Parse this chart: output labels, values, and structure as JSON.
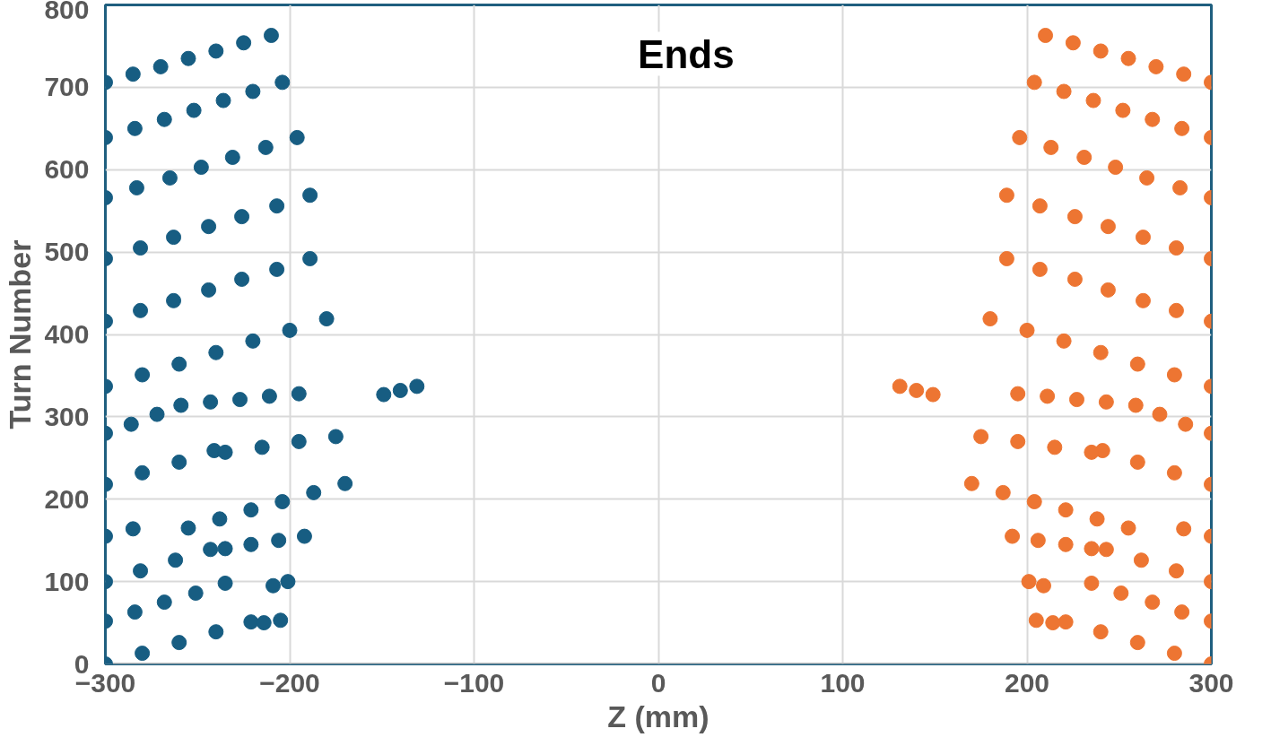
{
  "chart_data": {
    "type": "scatter",
    "title": "Ends",
    "xlabel": "Z (mm)",
    "ylabel": "Turn Number",
    "xlim": [
      -300,
      300
    ],
    "xticks": [
      -300,
      -200,
      -100,
      0,
      100,
      200,
      300
    ],
    "ylim": [
      0,
      800
    ],
    "yticks": [
      0,
      100,
      200,
      300,
      400,
      500,
      600,
      700,
      800
    ],
    "grid": true,
    "marker": "circle",
    "series": [
      {
        "color": "#175d82",
        "x": [
          -300,
          -280,
          -260,
          -240,
          -221,
          -214,
          -205,
          -300,
          -284,
          -268,
          -251,
          -235,
          -209,
          -201,
          -300,
          -281,
          -262,
          -243,
          -235,
          -221,
          -206,
          -192,
          -300,
          -285,
          -255,
          -238,
          -221,
          -204,
          -187,
          -170,
          -300,
          -280,
          -260,
          -241,
          -235,
          -215,
          -195,
          -175,
          -300,
          -286,
          -272,
          -259,
          -243,
          -227,
          -211,
          -195,
          -149,
          -140,
          -131,
          -300,
          -280,
          -260,
          -240,
          -220,
          -200,
          -180,
          -300,
          -281,
          -263,
          -244,
          -226,
          -207,
          -189,
          -300,
          -281,
          -263,
          -244,
          -226,
          -207,
          -189,
          -300,
          -283,
          -265,
          -248,
          -231,
          -213,
          -196,
          -300,
          -284,
          -268,
          -252,
          -236,
          -220,
          -204,
          -300,
          -285,
          -270,
          -255,
          -240,
          -225,
          -210
        ],
        "values": [
          0,
          13,
          26,
          39,
          51,
          50,
          53,
          52,
          63,
          75,
          86,
          98,
          95,
          100,
          100,
          113,
          126,
          139,
          140,
          145,
          150,
          155,
          155,
          164,
          165,
          176,
          187,
          197,
          208,
          219,
          218,
          232,
          245,
          259,
          257,
          263,
          270,
          276,
          280,
          291,
          303,
          314,
          318,
          321,
          325,
          328,
          327,
          332,
          337,
          337,
          351,
          364,
          378,
          392,
          405,
          419,
          416,
          429,
          441,
          454,
          467,
          479,
          492,
          492,
          505,
          518,
          531,
          543,
          556,
          569,
          566,
          578,
          590,
          603,
          615,
          627,
          639,
          639,
          650,
          661,
          672,
          684,
          695,
          706,
          706,
          716,
          725,
          735,
          744,
          754,
          763
        ]
      },
      {
        "color": "#ed7532",
        "x": [
          300,
          280,
          260,
          240,
          221,
          214,
          205,
          300,
          284,
          268,
          251,
          235,
          209,
          201,
          300,
          281,
          262,
          243,
          235,
          221,
          206,
          192,
          300,
          285,
          255,
          238,
          221,
          204,
          187,
          170,
          300,
          280,
          260,
          241,
          235,
          215,
          195,
          175,
          300,
          286,
          272,
          259,
          243,
          227,
          211,
          195,
          149,
          140,
          131,
          300,
          280,
          260,
          240,
          220,
          200,
          180,
          300,
          281,
          263,
          244,
          226,
          207,
          189,
          300,
          281,
          263,
          244,
          226,
          207,
          189,
          300,
          283,
          265,
          248,
          231,
          213,
          196,
          300,
          284,
          268,
          252,
          236,
          220,
          204,
          300,
          285,
          270,
          255,
          240,
          225,
          210
        ],
        "values": [
          0,
          13,
          26,
          39,
          51,
          50,
          53,
          52,
          63,
          75,
          86,
          98,
          95,
          100,
          100,
          113,
          126,
          139,
          140,
          145,
          150,
          155,
          155,
          164,
          165,
          176,
          187,
          197,
          208,
          219,
          218,
          232,
          245,
          259,
          257,
          263,
          270,
          276,
          280,
          291,
          303,
          314,
          318,
          321,
          325,
          328,
          327,
          332,
          337,
          337,
          351,
          364,
          378,
          392,
          405,
          419,
          416,
          429,
          441,
          454,
          467,
          479,
          492,
          492,
          505,
          518,
          531,
          543,
          556,
          569,
          566,
          578,
          590,
          603,
          615,
          627,
          639,
          639,
          650,
          661,
          672,
          684,
          695,
          706,
          706,
          716,
          725,
          735,
          744,
          754,
          763
        ]
      }
    ]
  }
}
